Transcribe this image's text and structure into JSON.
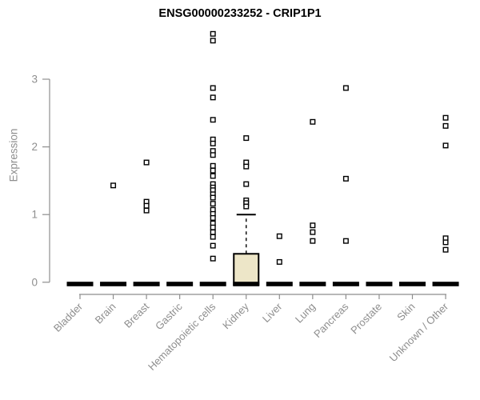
{
  "chart_data": {
    "type": "box",
    "title": "ENSG00000233252 - CRIP1P1",
    "ylabel": "Expression",
    "xlabel": "",
    "ylim": [
      0,
      3.8
    ],
    "yticks": [
      0,
      1,
      2,
      3
    ],
    "grid": false,
    "legend": "none",
    "axis_color": "#8e8e8e",
    "box_fill": "#ede6c8",
    "marker": "open-square",
    "categories": [
      "Bladder",
      "Brain",
      "Breast",
      "Gastric",
      "Hematopoietic cells",
      "Kidney",
      "Liver",
      "Lung",
      "Pancreas",
      "Prostate",
      "Skin",
      "Unknown / Other"
    ],
    "series": [
      {
        "category": "Bladder",
        "zero_line": true,
        "points": []
      },
      {
        "category": "Brain",
        "zero_line": true,
        "points": [
          1.43
        ]
      },
      {
        "category": "Breast",
        "zero_line": true,
        "points": [
          1.77,
          1.19,
          1.13,
          1.06
        ]
      },
      {
        "category": "Gastric",
        "zero_line": true,
        "points": []
      },
      {
        "category": "Hematopoietic cells",
        "zero_line": true,
        "points": [
          3.67,
          3.57,
          2.87,
          2.73,
          2.4,
          2.11,
          2.05,
          1.94,
          1.88,
          1.72,
          1.65,
          1.57,
          1.45,
          1.4,
          1.36,
          1.3,
          1.25,
          1.16,
          1.07,
          1.01,
          0.95,
          0.87,
          0.81,
          0.74,
          0.67,
          0.54,
          0.35
        ]
      },
      {
        "category": "Kidney",
        "zero_line": true,
        "box": {
          "q1": 0,
          "median": 0,
          "q3": 0.42,
          "whisker_high": 1.0
        },
        "points": [
          2.13,
          1.77,
          1.71,
          1.45,
          1.21,
          1.17,
          1.12
        ]
      },
      {
        "category": "Liver",
        "zero_line": true,
        "points": [
          0.68,
          0.3
        ]
      },
      {
        "category": "Lung",
        "zero_line": true,
        "points": [
          2.37,
          0.84,
          0.74,
          0.61
        ]
      },
      {
        "category": "Pancreas",
        "zero_line": true,
        "points": [
          2.87,
          1.53,
          0.61
        ]
      },
      {
        "category": "Prostate",
        "zero_line": true,
        "points": []
      },
      {
        "category": "Skin",
        "zero_line": true,
        "points": []
      },
      {
        "category": "Unknown / Other",
        "zero_line": true,
        "points": [
          2.43,
          2.31,
          2.02,
          0.65,
          0.59,
          0.48
        ]
      }
    ]
  }
}
